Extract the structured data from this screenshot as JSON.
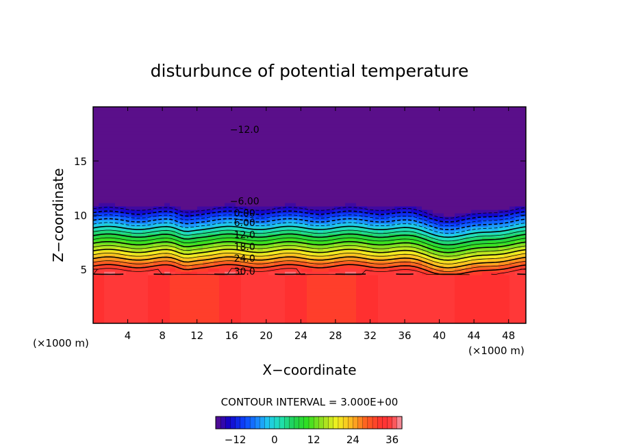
{
  "chart_data": {
    "type": "contour",
    "title": "disturbunce of potential temperature",
    "xlabel": "X−coordinate",
    "ylabel": "Z−coordinate",
    "x_unit_label": "(×1000 m)",
    "y_unit_label": "(×1000 m)",
    "xlim": [
      0,
      50
    ],
    "ylim": [
      0,
      20
    ],
    "x_ticks": [
      4,
      8,
      12,
      16,
      20,
      24,
      28,
      32,
      36,
      40,
      44,
      48
    ],
    "y_ticks": [
      5,
      10,
      15
    ],
    "contour_interval_text": "CONTOUR INTERVAL = 3.000E+00",
    "contour_interval": 3.0,
    "levels": [
      -15,
      -12,
      -9,
      -6,
      -3,
      0,
      3,
      6,
      9,
      12,
      15,
      18,
      21,
      24,
      27,
      30,
      33,
      36
    ],
    "contour_labels": [
      {
        "text": "−12.0",
        "value": -12,
        "x": 17.5,
        "z": 17.9
      },
      {
        "text": "−6.00",
        "value": -6,
        "x": 17.5,
        "z": 11.3
      },
      {
        "text": "0.00",
        "value": 0,
        "x": 17.5,
        "z": 10.2
      },
      {
        "text": "6.00",
        "value": 6,
        "x": 17.5,
        "z": 9.3
      },
      {
        "text": "12.0",
        "value": 12,
        "x": 17.5,
        "z": 8.2
      },
      {
        "text": "18.0",
        "value": 18,
        "x": 17.5,
        "z": 7.1
      },
      {
        "text": "24.0",
        "value": 24,
        "x": 17.5,
        "z": 6.0
      },
      {
        "text": "30.0",
        "value": 30,
        "x": 17.5,
        "z": 4.8
      }
    ],
    "colorbar": {
      "min": -18,
      "max": 39,
      "tick_values": [
        -12,
        0,
        12,
        24,
        36
      ],
      "tick_labels": [
        "−12",
        "0",
        "12",
        "24",
        "36"
      ]
    },
    "color_stops": [
      {
        "value": -18,
        "color": "#5a0f8a"
      },
      {
        "value": -14,
        "color": "#1400c8"
      },
      {
        "value": -9,
        "color": "#0a46ff"
      },
      {
        "value": -5,
        "color": "#1a8cff"
      },
      {
        "value": -2,
        "color": "#1ec8f0"
      },
      {
        "value": 2,
        "color": "#20e0b0"
      },
      {
        "value": 6,
        "color": "#20d050"
      },
      {
        "value": 10,
        "color": "#30e020"
      },
      {
        "value": 15,
        "color": "#a0e020"
      },
      {
        "value": 19,
        "color": "#f0f020"
      },
      {
        "value": 24,
        "color": "#ffb020"
      },
      {
        "value": 28,
        "color": "#ff6020"
      },
      {
        "value": 33,
        "color": "#ff3030"
      },
      {
        "value": 36,
        "color": "#ff4040"
      },
      {
        "value": 39,
        "color": "#f0a0b0"
      }
    ],
    "grid": false,
    "legend": "none"
  }
}
